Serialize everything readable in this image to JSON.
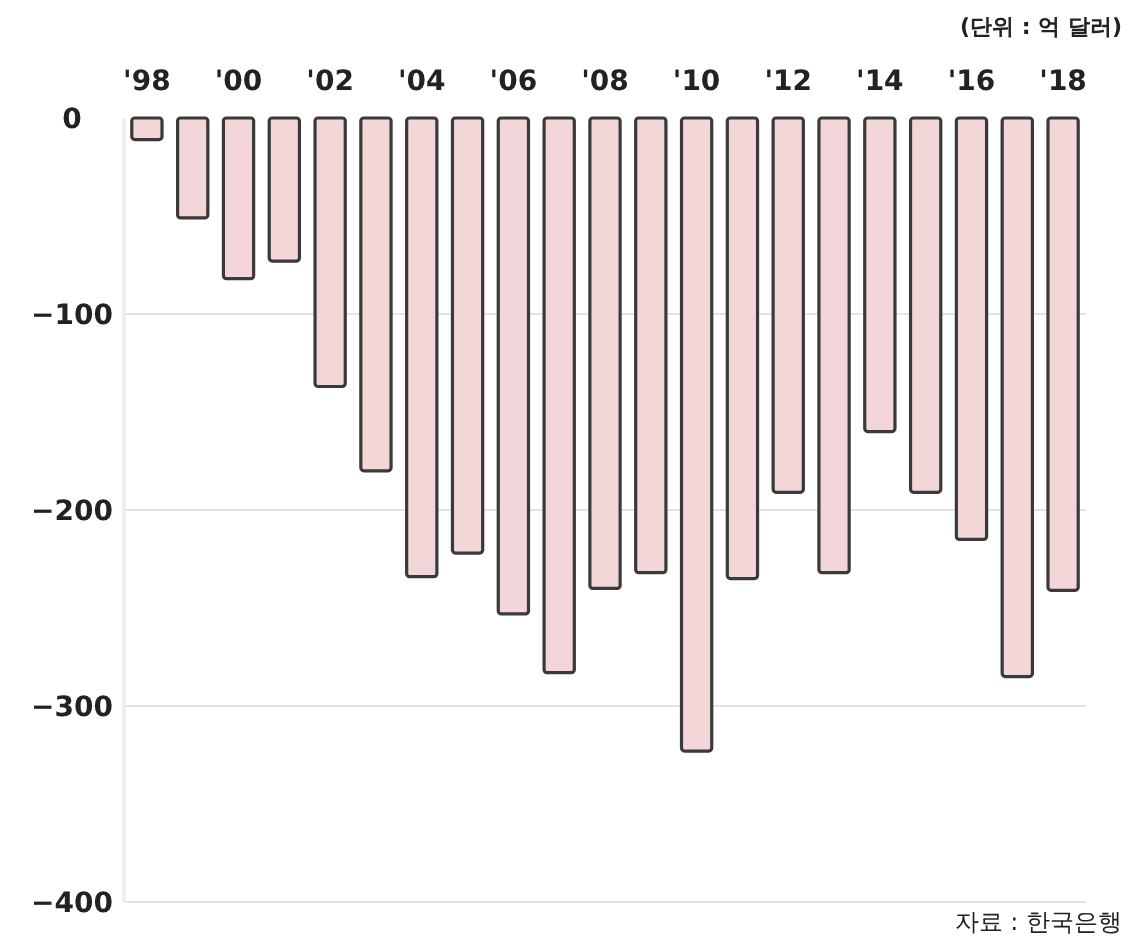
{
  "chart_data": {
    "type": "bar",
    "categories": [
      "'98",
      null,
      "'00",
      null,
      "'02",
      null,
      "'04",
      null,
      "'06",
      null,
      "'08",
      null,
      "'10",
      null,
      "'12",
      null,
      "'14",
      null,
      "'16",
      null,
      "'18"
    ],
    "values": [
      -11,
      -51,
      -82,
      -73,
      -137,
      -180,
      -234,
      -222,
      -253,
      -283,
      -240,
      -232,
      -323,
      -235,
      -191,
      -232,
      -160,
      -191,
      -215,
      -285,
      -241
    ],
    "color": "#f2d6d8",
    "ylim": [
      -400,
      0
    ],
    "yticks": [
      -400,
      -300,
      -200,
      -100,
      0
    ],
    "grid": "y",
    "annotations": [
      "(단위 : 억 달러)",
      "자료 : 한국은행"
    ]
  }
}
